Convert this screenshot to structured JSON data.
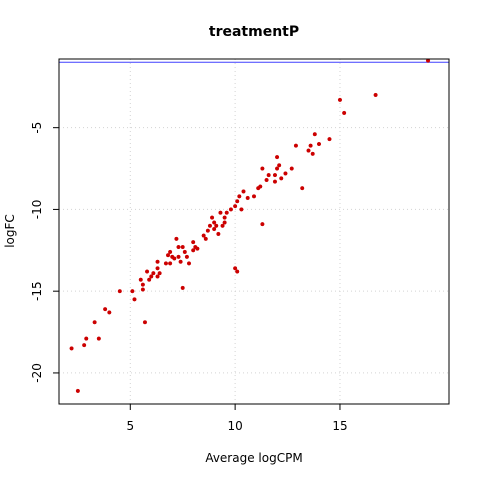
{
  "chart_data": {
    "type": "scatter",
    "title": "treatmentP",
    "xlabel": "Average logCPM",
    "ylabel": "logFC",
    "xlim": [
      1.6,
      20.2
    ],
    "ylim": [
      -21.9,
      -0.8
    ],
    "xticks": [
      5,
      10,
      15
    ],
    "yticks": [
      -5,
      -10,
      -15,
      -20
    ],
    "grid": true,
    "hline": {
      "y": -1.0,
      "color": "#4040ff"
    },
    "point_color": "#cc0000",
    "series": [
      {
        "points": [
          [
            2.2,
            -18.5
          ],
          [
            2.5,
            -21.1
          ],
          [
            2.8,
            -18.3
          ],
          [
            2.9,
            -17.9
          ],
          [
            3.3,
            -16.9
          ],
          [
            3.5,
            -17.9
          ],
          [
            3.8,
            -16.1
          ],
          [
            4.0,
            -16.3
          ],
          [
            4.5,
            -15.0
          ],
          [
            5.1,
            -15.0
          ],
          [
            5.2,
            -15.5
          ],
          [
            5.5,
            -14.3
          ],
          [
            5.6,
            -14.6
          ],
          [
            5.6,
            -14.9
          ],
          [
            5.7,
            -16.9
          ],
          [
            5.8,
            -13.8
          ],
          [
            5.9,
            -14.3
          ],
          [
            6.0,
            -14.1
          ],
          [
            6.1,
            -13.9
          ],
          [
            6.3,
            -13.6
          ],
          [
            6.3,
            -14.1
          ],
          [
            6.4,
            -13.9
          ],
          [
            6.3,
            -13.2
          ],
          [
            6.7,
            -13.3
          ],
          [
            6.8,
            -12.8
          ],
          [
            6.9,
            -12.6
          ],
          [
            6.9,
            -13.3
          ],
          [
            7.0,
            -12.9
          ],
          [
            7.1,
            -13.0
          ],
          [
            7.2,
            -11.8
          ],
          [
            7.3,
            -12.3
          ],
          [
            7.3,
            -12.9
          ],
          [
            7.4,
            -13.2
          ],
          [
            7.5,
            -12.3
          ],
          [
            7.5,
            -14.8
          ],
          [
            7.6,
            -12.6
          ],
          [
            7.7,
            -12.9
          ],
          [
            7.8,
            -13.3
          ],
          [
            8.0,
            -12.0
          ],
          [
            8.0,
            -12.5
          ],
          [
            8.1,
            -12.3
          ],
          [
            8.2,
            -12.4
          ],
          [
            8.5,
            -11.6
          ],
          [
            8.6,
            -11.8
          ],
          [
            8.7,
            -11.3
          ],
          [
            8.8,
            -11.0
          ],
          [
            8.9,
            -10.5
          ],
          [
            9.0,
            -11.2
          ],
          [
            9.0,
            -10.8
          ],
          [
            9.1,
            -11.0
          ],
          [
            9.2,
            -11.5
          ],
          [
            9.3,
            -10.2
          ],
          [
            9.4,
            -11.0
          ],
          [
            9.5,
            -10.5
          ],
          [
            9.5,
            -10.8
          ],
          [
            9.6,
            -10.2
          ],
          [
            9.8,
            -10.0
          ],
          [
            10.0,
            -9.8
          ],
          [
            10.0,
            -13.6
          ],
          [
            10.1,
            -13.8
          ],
          [
            10.1,
            -9.5
          ],
          [
            10.2,
            -9.2
          ],
          [
            10.3,
            -10.0
          ],
          [
            10.4,
            -8.9
          ],
          [
            10.6,
            -9.3
          ],
          [
            10.9,
            -9.2
          ],
          [
            11.1,
            -8.7
          ],
          [
            11.2,
            -8.6
          ],
          [
            11.3,
            -7.5
          ],
          [
            11.3,
            -10.9
          ],
          [
            11.5,
            -8.2
          ],
          [
            11.6,
            -7.9
          ],
          [
            11.9,
            -7.9
          ],
          [
            11.9,
            -8.3
          ],
          [
            12.0,
            -6.8
          ],
          [
            12.0,
            -7.5
          ],
          [
            12.1,
            -7.3
          ],
          [
            12.2,
            -8.1
          ],
          [
            12.4,
            -7.8
          ],
          [
            12.7,
            -7.5
          ],
          [
            12.9,
            -6.1
          ],
          [
            13.2,
            -8.7
          ],
          [
            13.5,
            -6.4
          ],
          [
            13.6,
            -6.1
          ],
          [
            13.7,
            -6.6
          ],
          [
            13.8,
            -5.4
          ],
          [
            14.0,
            -6.0
          ],
          [
            14.5,
            -5.7
          ],
          [
            15.0,
            -3.3
          ],
          [
            15.2,
            -4.1
          ],
          [
            16.7,
            -3.0
          ],
          [
            19.2,
            -0.9
          ]
        ]
      }
    ]
  }
}
